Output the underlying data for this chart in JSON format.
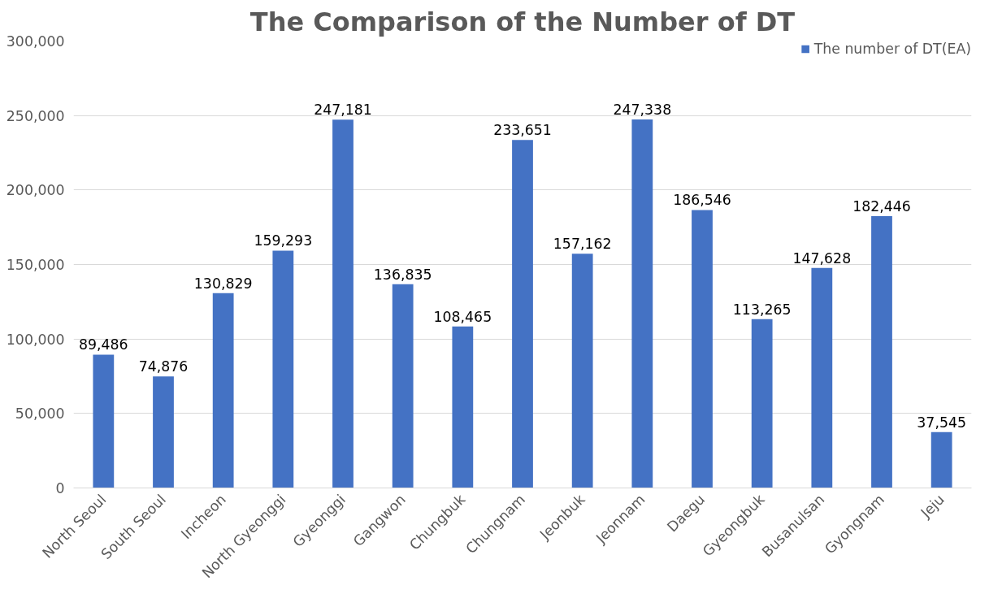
{
  "chart_data": {
    "type": "bar",
    "title": "The Comparison of the Number of DT",
    "categories": [
      "North Seoul",
      "South Seoul",
      "Incheon",
      "North Gyeonggi",
      "Gyeonggi",
      "Gangwon",
      "Chungbuk",
      "Chungnam",
      "Jeonbuk",
      "Jeonnam",
      "Daegu",
      "Gyeongbuk",
      "Busanulsan",
      "Gyongnam",
      "Jeju"
    ],
    "series": [
      {
        "name": "The number of DT(EA)",
        "color": "#4472c4",
        "values": [
          89486,
          74876,
          130829,
          159293,
          247181,
          136835,
          108465,
          233651,
          157162,
          247338,
          186546,
          113265,
          147628,
          182446,
          37545
        ],
        "value_labels": [
          "89,486",
          "74,876",
          "130,829",
          "159,293",
          "247,181",
          "136,835",
          "108,465",
          "233,651",
          "157,162",
          "247,338",
          "186,546",
          "113,265",
          "147,628",
          "182,446",
          "37,545"
        ]
      }
    ],
    "ylim": [
      0,
      300000
    ],
    "yticks": [
      0,
      {
        "value": 50000,
        "label": "50,000"
      },
      {
        "value": 100000,
        "label": "100,000"
      },
      {
        "value": 150000,
        "label": "150,000"
      },
      {
        "value": 200000,
        "label": "200,000"
      },
      {
        "value": 250000,
        "label": "250,000"
      },
      {
        "value": 300000,
        "label": "300,000"
      }
    ],
    "grid": "y",
    "legend": "top right"
  }
}
